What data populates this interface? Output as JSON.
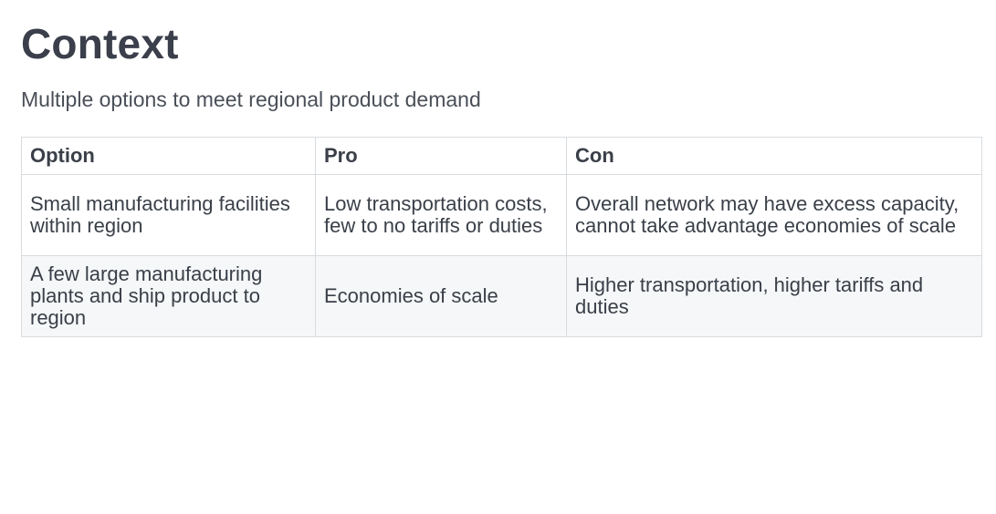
{
  "title": "Context",
  "subtitle": "Multiple options to meet regional product demand",
  "table": {
    "headers": [
      "Option",
      "Pro",
      "Con"
    ],
    "rows": [
      {
        "option": "Small manufacturing facilities within region",
        "pro": "Low transportation costs, few to no tariffs or duties",
        "con": "Overall network may have excess capacity, cannot take advantage economies of scale"
      },
      {
        "option": "A few large manufacturing plants and ship product to region",
        "pro": "Economies of scale",
        "con": "Higher transportation, higher tariffs and duties"
      }
    ]
  }
}
